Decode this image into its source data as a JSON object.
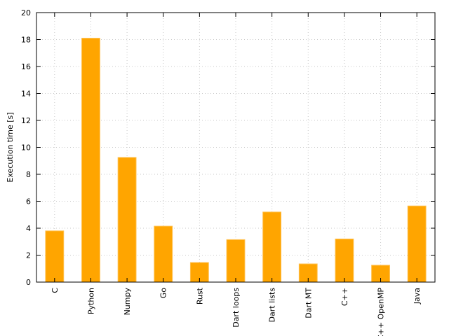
{
  "chart_data": {
    "type": "bar",
    "title": "",
    "xlabel": "",
    "ylabel": "Execution time [s]",
    "categories": [
      "C",
      "Python",
      "Numpy",
      "Go",
      "Rust",
      "Dart loops",
      "Dart lists",
      "Dart MT",
      "C++",
      "C++ OpenMP",
      "Java"
    ],
    "values": [
      3.8,
      18.1,
      9.25,
      4.15,
      1.45,
      3.15,
      5.2,
      1.35,
      3.2,
      1.25,
      5.65
    ],
    "ylim": [
      0,
      20
    ],
    "yticks": [
      0,
      2,
      4,
      6,
      8,
      10,
      12,
      14,
      16,
      18,
      20
    ],
    "grid": true,
    "bar_color": "#ffa500",
    "bar_edge_color": "#ffc04d"
  }
}
